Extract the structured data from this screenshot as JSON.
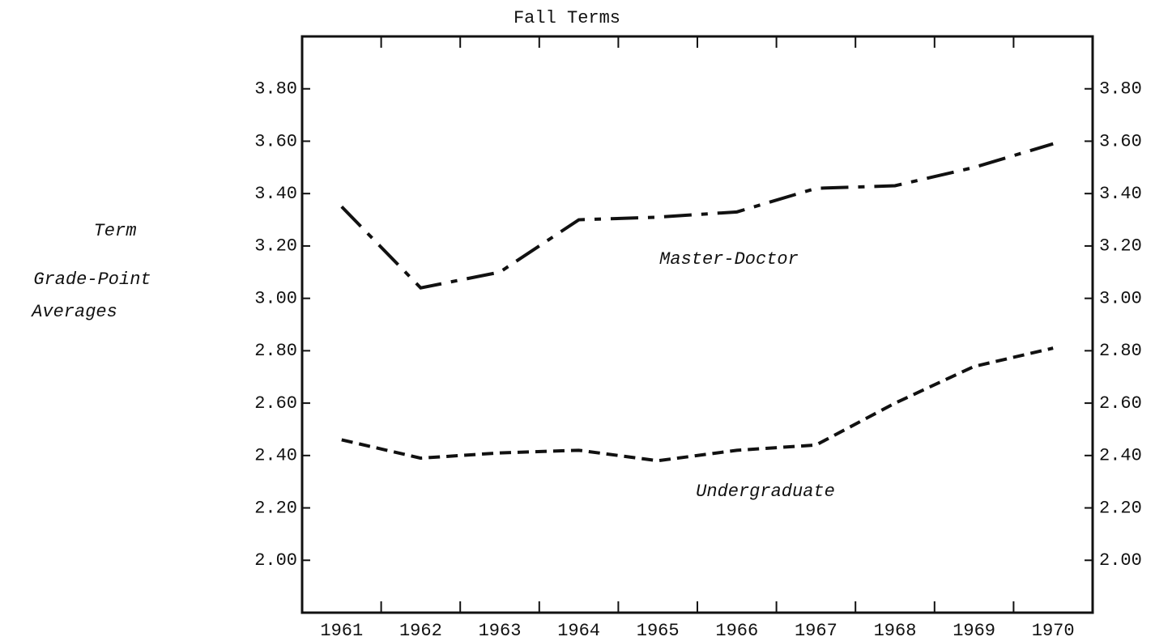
{
  "chart_data": {
    "type": "line",
    "title": "Fall Terms",
    "ylabel": [
      "Term",
      "Grade-Point",
      "Averages"
    ],
    "categories": [
      "1961",
      "1962",
      "1963",
      "1964",
      "1965",
      "1966",
      "1967",
      "1968",
      "1969",
      "1970"
    ],
    "series": [
      {
        "name": "Master-Doctor",
        "color": "#111111",
        "values": [
          3.35,
          3.04,
          3.1,
          3.3,
          3.31,
          3.33,
          3.42,
          3.43,
          3.5,
          3.59
        ]
      },
      {
        "name": "Undergraduate",
        "color": "#111111",
        "values": [
          2.46,
          2.39,
          2.41,
          2.42,
          2.38,
          2.42,
          2.44,
          2.6,
          2.74,
          2.81
        ]
      }
    ],
    "ylim": [
      1.8,
      4.0
    ],
    "yticks": [
      {
        "value": 2.0,
        "label": "2.00"
      },
      {
        "value": 2.2,
        "label": "2.20"
      },
      {
        "value": 2.4,
        "label": "2.40"
      },
      {
        "value": 2.6,
        "label": "2.60"
      },
      {
        "value": 2.8,
        "label": "2.80"
      },
      {
        "value": 3.0,
        "label": "3.00"
      },
      {
        "value": 3.2,
        "label": "3.20"
      },
      {
        "value": 3.4,
        "label": "3.40"
      },
      {
        "value": 3.6,
        "label": "3.60"
      },
      {
        "value": 3.8,
        "label": "3.80"
      }
    ],
    "grid": false
  }
}
